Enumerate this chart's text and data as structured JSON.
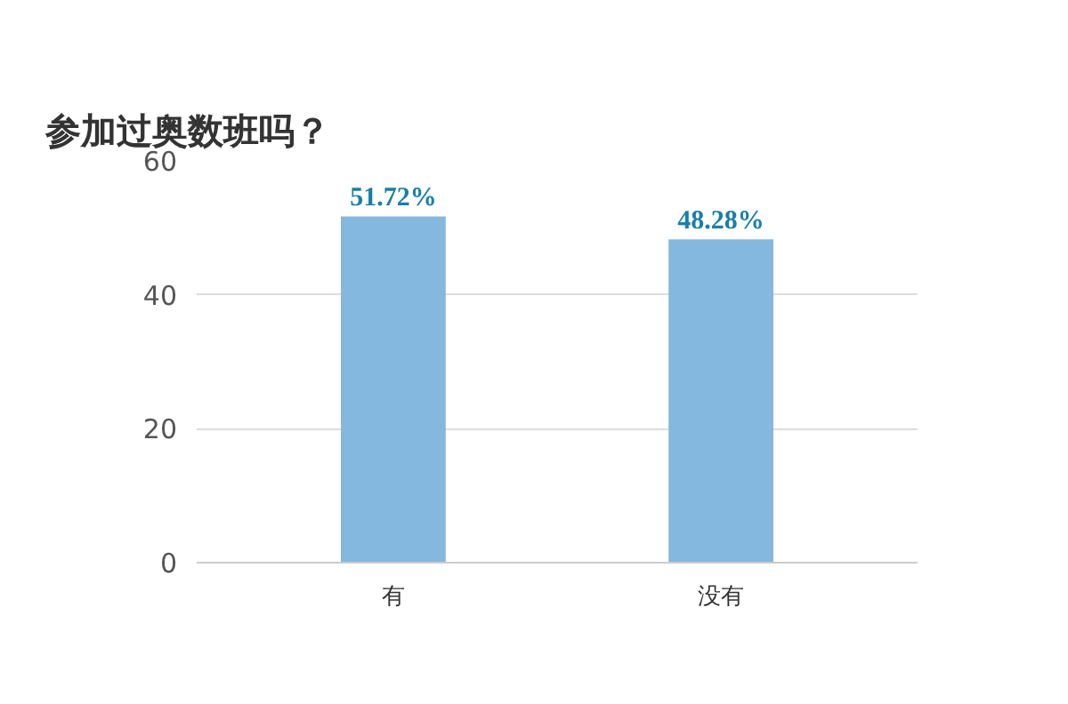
{
  "chart_data": {
    "type": "bar",
    "title": "参加过奥数班吗？",
    "categories": [
      "有",
      "没有"
    ],
    "values": [
      51.72,
      48.28
    ],
    "value_labels": [
      "51.72%",
      "48.28%"
    ],
    "color": "#85b8de",
    "ylim": [
      0,
      60
    ],
    "yticks": [
      0,
      20,
      40,
      60
    ],
    "grid": "y"
  }
}
